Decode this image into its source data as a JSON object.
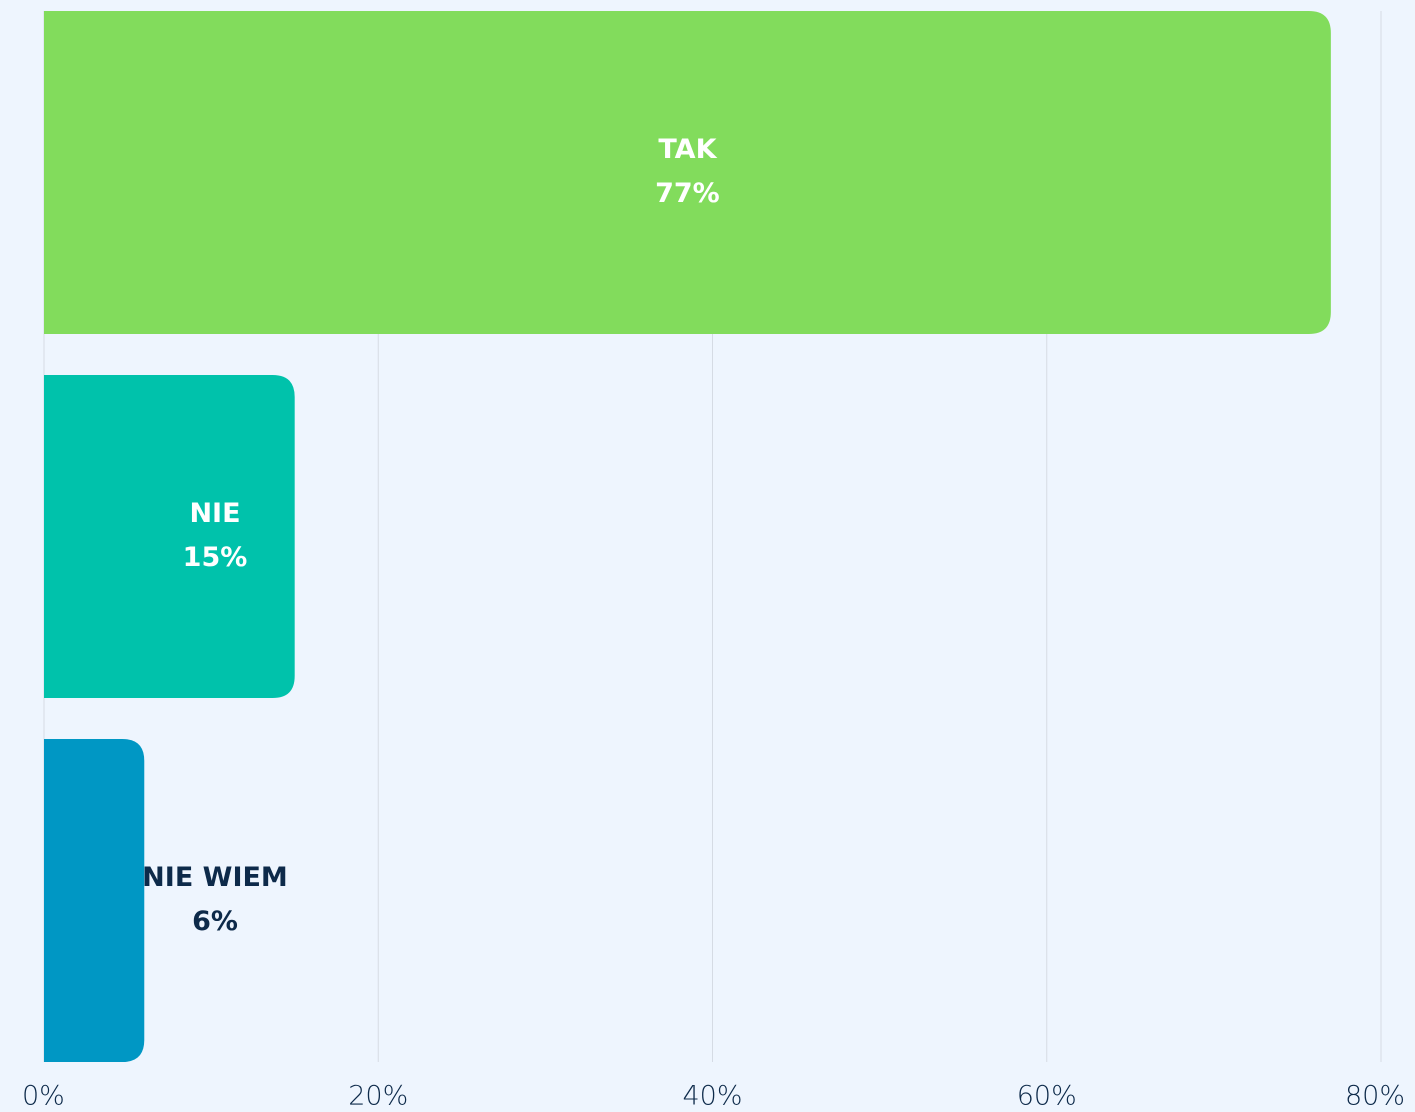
{
  "chart_data": {
    "type": "bar",
    "orientation": "horizontal",
    "categories": [
      "TAK",
      "NIE",
      "NIE WIEM"
    ],
    "values": [
      77,
      15,
      6
    ],
    "value_labels": [
      "77%",
      "15%",
      "6%"
    ],
    "colors": [
      "#82dc5c",
      "#00c2ab",
      "#0097c4"
    ],
    "xlim": [
      0,
      80
    ],
    "xticks": [
      {
        "value": 0,
        "label": "0%"
      },
      {
        "value": 20,
        "label": "20%"
      },
      {
        "value": 40,
        "label": "40%"
      },
      {
        "value": 60,
        "label": "60%"
      },
      {
        "value": 80,
        "label": "80%"
      }
    ],
    "grid": true
  }
}
